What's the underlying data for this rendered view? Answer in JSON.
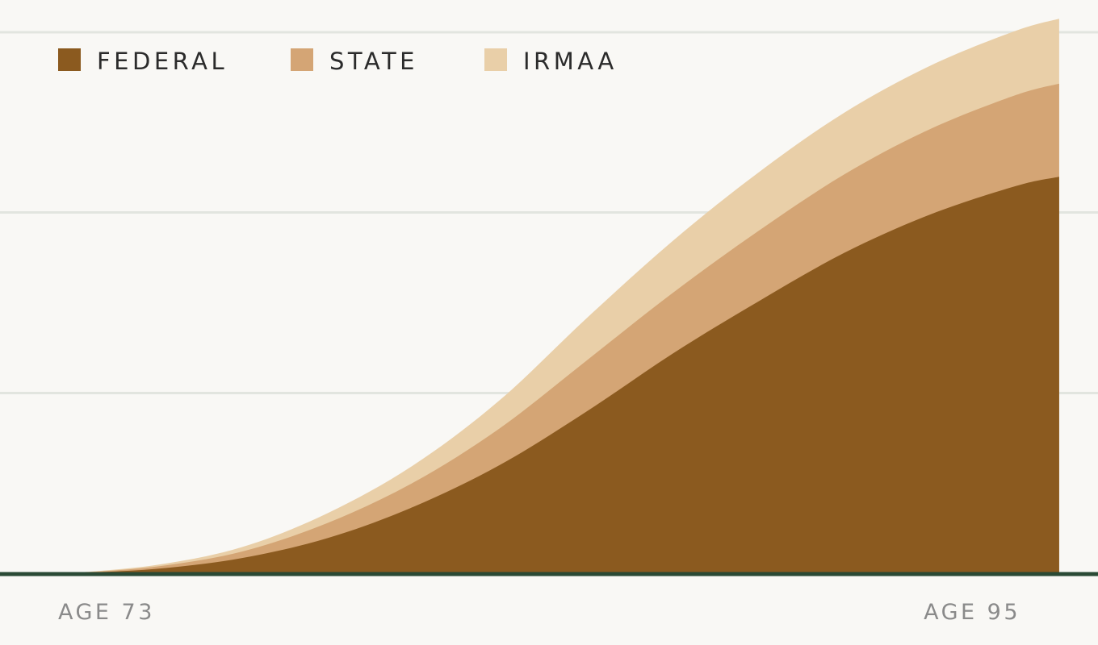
{
  "chart_data": {
    "type": "area",
    "stacked": true,
    "title": "",
    "xlabel": "",
    "ylabel": "",
    "x": [
      73,
      75,
      77,
      79,
      81,
      83,
      85,
      87,
      89,
      91,
      93,
      95,
      96
    ],
    "xlim": [
      73,
      96
    ],
    "ylim": [
      0,
      100
    ],
    "grid": true,
    "gridlines_y": [
      33.3,
      66.7,
      100
    ],
    "legend_position": "top-left",
    "tick_labels": [
      {
        "x": 73,
        "label": "AGE 73"
      },
      {
        "x": 95,
        "label": "AGE 95"
      }
    ],
    "series": [
      {
        "name": "FEDERAL",
        "color": "#8b5a1f",
        "values": [
          0,
          0.8,
          2.8,
          6.5,
          12.3,
          20.0,
          29.8,
          40.5,
          50.2,
          59.2,
          66.3,
          71.6,
          73.3
        ]
      },
      {
        "name": "STATE",
        "color": "#d4a575",
        "values": [
          0,
          0.4,
          1.2,
          2.8,
          4.5,
          6.8,
          9.4,
          11.2,
          13.0,
          14.5,
          15.8,
          16.8,
          17.2
        ]
      },
      {
        "name": "IRMAA",
        "color": "#e9cfa8",
        "values": [
          0,
          0.3,
          0.8,
          1.8,
          3.2,
          5.2,
          7.8,
          9.6,
          10.8,
          11.4,
          11.7,
          11.9,
          12.0
        ]
      }
    ],
    "axis_color": "#2a4a35",
    "grid_color": "#e2e5df"
  }
}
